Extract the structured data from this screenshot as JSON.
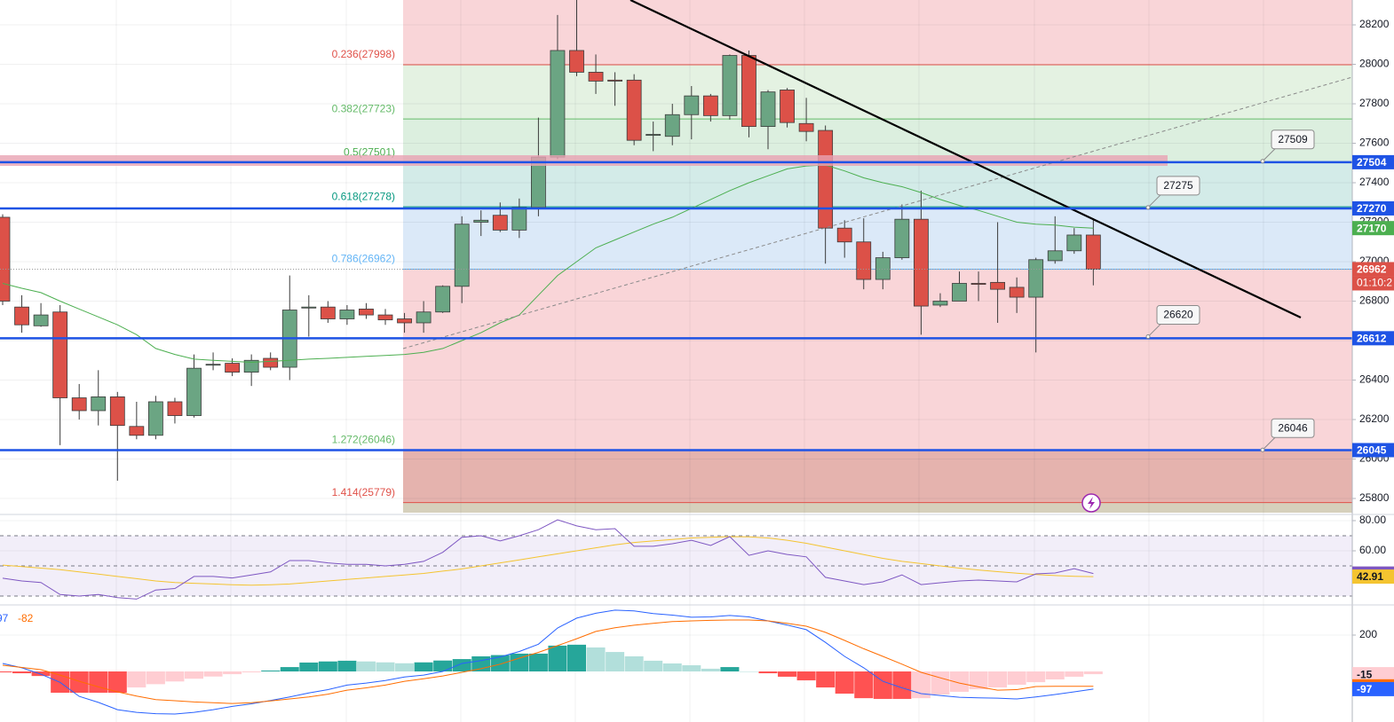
{
  "chart_data": [
    {
      "type": "candlestick",
      "ylim": [
        25728,
        28326
      ],
      "yticks": [
        25800,
        26000,
        26200,
        26400,
        26600,
        26800,
        27000,
        27200,
        27400,
        27600,
        27800,
        28000,
        28200
      ],
      "grid": true,
      "up_color": "#6ba583",
      "down_color": "#dc5148",
      "open": [
        27225,
        26770,
        26675,
        26745,
        26310,
        26245,
        26315,
        26165,
        26120,
        26290,
        26220,
        26480,
        26485,
        26440,
        26510,
        26465,
        26765,
        26770,
        26710,
        26760,
        26730,
        26710,
        26690,
        26745,
        26875,
        27200,
        27235,
        27160,
        27275,
        27530,
        28070,
        27960,
        27920,
        27920,
        27640,
        27635,
        27745,
        27840,
        27740,
        28045,
        27685,
        27870,
        27700,
        27665,
        27170,
        27100,
        26910,
        27020,
        27215,
        26780,
        26800,
        26890,
        26895,
        26870,
        26820,
        27005,
        27055,
        27135
      ],
      "high": [
        27240,
        26830,
        26790,
        26780,
        26380,
        26450,
        26340,
        26290,
        26320,
        26310,
        26530,
        26540,
        26510,
        26530,
        26540,
        26930,
        26830,
        26800,
        26780,
        26790,
        26760,
        26740,
        26800,
        26880,
        27230,
        27260,
        27300,
        27320,
        27730,
        28250,
        28330,
        28050,
        27960,
        27950,
        27710,
        27800,
        27890,
        27850,
        28050,
        28070,
        27870,
        27880,
        27830,
        27690,
        27210,
        27220,
        27050,
        27290,
        27360,
        26840,
        26950,
        26950,
        27200,
        26920,
        27020,
        27230,
        27170,
        27220
      ],
      "low": [
        26780,
        26640,
        26670,
        26070,
        26200,
        26170,
        25890,
        26100,
        26100,
        26180,
        26210,
        26450,
        26420,
        26370,
        26450,
        26400,
        26620,
        26690,
        26680,
        26710,
        26680,
        26640,
        26640,
        26740,
        26790,
        27130,
        27150,
        27120,
        27230,
        27520,
        27940,
        27850,
        27790,
        27590,
        27560,
        27590,
        27620,
        27710,
        27720,
        27630,
        27570,
        27680,
        27610,
        26990,
        27020,
        26860,
        26860,
        27010,
        26630,
        26770,
        26800,
        26800,
        26690,
        26740,
        26540,
        26990,
        27040,
        26880
      ],
      "close": [
        26800,
        26680,
        26730,
        26310,
        26245,
        26315,
        26170,
        26120,
        26290,
        26220,
        26460,
        26480,
        26440,
        26500,
        26465,
        26755,
        26770,
        26710,
        26755,
        26730,
        26705,
        26690,
        26745,
        26875,
        27190,
        27210,
        27160,
        27275,
        27530,
        28070,
        27960,
        27915,
        27915,
        27615,
        27645,
        27745,
        27840,
        27740,
        28045,
        27685,
        27860,
        27705,
        27660,
        27170,
        27100,
        26910,
        27020,
        27215,
        26775,
        26800,
        26890,
        26885,
        26860,
        26820,
        27010,
        27055,
        27135,
        26962
      ],
      "series": [
        {
          "color": "#4caf50",
          "values": [
            26890,
            26865,
            26843,
            26800,
            26760,
            26720,
            26680,
            26630,
            26560,
            26530,
            26506,
            26500,
            26495,
            26490,
            26495,
            26500,
            26506,
            26510,
            26515,
            26520,
            26525,
            26530,
            26540,
            26560,
            26600,
            26640,
            26690,
            26730,
            26830,
            26930,
            27000,
            27070,
            27110,
            27150,
            27190,
            27225,
            27270,
            27315,
            27360,
            27400,
            27435,
            27470,
            27485,
            27490,
            27460,
            27425,
            27400,
            27380,
            27350,
            27315,
            27285,
            27260,
            27230,
            27200,
            27190,
            27185,
            27175,
            27170
          ]
        }
      ],
      "fib_top_fill": "#f9d5d8",
      "fib_levels": [
        {
          "value": 27998,
          "label": "0.236(27998)",
          "color": "#e0524a",
          "fill": "#e4f2e2"
        },
        {
          "value": 27723,
          "label": "0.382(27723)",
          "color": "#66bb6a",
          "fill": "#dcefdf"
        },
        {
          "value": 27501,
          "label": "0.5(27501)",
          "color": "#4caf50",
          "fill": "#d3ebe8"
        },
        {
          "value": 27278,
          "label": "0.618(27278)",
          "color": "#089981",
          "fill": "#dbe9f8"
        },
        {
          "value": 26962,
          "label": "0.786(26962)",
          "color": "#64b5f6",
          "fill": "#f9d5d8"
        },
        {
          "value": 26046,
          "label": "1.272(26046)",
          "color": "#66bb6a",
          "fill": "#e5b3ae"
        },
        {
          "value": 25779,
          "label": "1.414(25779)",
          "color": "#e0524a",
          "fill": "#d6d0bc"
        }
      ],
      "levels": [
        27504,
        27270,
        26612,
        26045
      ],
      "level_color": "#1e53e5",
      "callouts": [
        27509,
        27275,
        26620,
        26046
      ],
      "countdown": "01:10:2"
    },
    {
      "type": "rsi",
      "ylim": [
        25.3,
        84.1
      ],
      "yticks": [
        {
          "value": 60,
          "label": "60.00"
        },
        {
          "value": 80,
          "label": "80.00"
        }
      ],
      "bands": [
        30,
        50,
        70
      ],
      "series": [
        {
          "color": "#7e57c2",
          "values": [
            41.8,
            40,
            39,
            31,
            30,
            31,
            29,
            28,
            34,
            35,
            43,
            43,
            42,
            44,
            46,
            53.5,
            53.5,
            52,
            51,
            51,
            50,
            51,
            53,
            59,
            69,
            70,
            66.5,
            70,
            74,
            80.6,
            76.5,
            74,
            74.7,
            63,
            63,
            64.7,
            67,
            63.5,
            69.4,
            57,
            60,
            57.6,
            56,
            42.4,
            40,
            37.6,
            39.4,
            44,
            37.6,
            38.8,
            40,
            40.6,
            40,
            39.4,
            44.7,
            45.3,
            48.2,
            44.92
          ]
        },
        {
          "color": "#f4c430",
          "values": [
            50.5,
            49.5,
            48.5,
            47.5,
            46,
            44.5,
            43,
            41.5,
            40,
            39,
            38.5,
            38,
            37.5,
            37.2,
            37.5,
            38,
            39,
            40,
            41,
            42,
            43,
            44,
            45,
            46.5,
            48,
            50,
            52,
            54,
            56,
            58,
            60,
            62,
            64,
            65.5,
            66.5,
            67.5,
            68.5,
            69,
            69.4,
            69.2,
            68.5,
            67,
            65,
            62.5,
            60,
            57.5,
            55,
            53,
            51.5,
            50,
            48.5,
            47.3,
            46.2,
            45.2,
            44.3,
            43.6,
            43.1,
            42.91
          ]
        }
      ]
    },
    {
      "type": "macd",
      "ylim": [
        -278,
        361
      ],
      "yticks": [
        200
      ],
      "histogram": [
        -5,
        -10,
        -25,
        -117,
        -117,
        -117,
        -117,
        -88,
        -70,
        -55,
        -40,
        -28,
        -15,
        -5,
        5,
        24,
        49,
        55,
        59,
        55,
        50,
        45,
        50,
        60,
        68,
        83,
        90,
        98,
        98,
        142,
        147,
        132,
        107,
        83,
        59,
        44,
        34,
        15,
        24,
        0,
        -10,
        -29,
        -49,
        -88,
        -122,
        -147,
        -151,
        -151,
        -147,
        -127,
        -112,
        -98,
        -88,
        -73,
        -59,
        -44,
        -29,
        -15
      ],
      "series": [
        {
          "color": "#2962ff",
          "values": [
            44,
            20,
            -15,
            -60,
            -137,
            -170,
            -210,
            -225,
            -232,
            -234,
            -225,
            -210,
            -192,
            -178,
            -160,
            -140,
            -118,
            -100,
            -75,
            -64,
            -50,
            -30,
            -20,
            0,
            44,
            60,
            80,
            110,
            150,
            239,
            293,
            320,
            337,
            333,
            318,
            310,
            298,
            300,
            308,
            300,
            278,
            255,
            230,
            160,
            83,
            20,
            -54,
            -90,
            -122,
            -132,
            -142,
            -145,
            -147,
            -151,
            -140,
            -127,
            -112,
            -97
          ]
        },
        {
          "color": "#ff6d00",
          "values": [
            34,
            22,
            10,
            -20,
            -54,
            -85,
            -112,
            -135,
            -155,
            -161,
            -168,
            -172,
            -176,
            -172,
            -162,
            -151,
            -140,
            -125,
            -103,
            -90,
            -75,
            -54,
            -40,
            -25,
            -5,
            15,
            40,
            73,
            105,
            142,
            180,
            220,
            240,
            254,
            265,
            274,
            278,
            281,
            283,
            283,
            278,
            265,
            249,
            215,
            171,
            125,
            83,
            40,
            -5,
            -35,
            -64,
            -85,
            -103,
            -100,
            -83,
            -82,
            -82,
            -82
          ]
        }
      ]
    }
  ]
}
